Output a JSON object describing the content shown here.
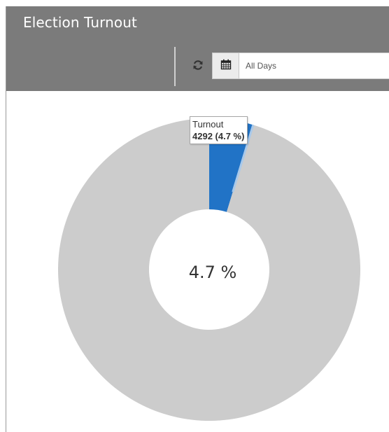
{
  "widget": {
    "title": "Election Turnout"
  },
  "toolbar": {
    "refresh_icon": "refresh-icon",
    "calendar_icon": "calendar-icon",
    "date_range_value": "All Days"
  },
  "chart": {
    "center_label": "4.7 %",
    "tooltip": {
      "series_name": "Turnout",
      "value_text": "4292 (4.7 %)"
    }
  },
  "chart_data": {
    "type": "pie",
    "donut": true,
    "slices": [
      {
        "name": "Turnout",
        "value": 4292,
        "percent": 4.7,
        "color": "#2173c6"
      },
      {
        "name": "",
        "percent": 95.3,
        "color": "#cccccc"
      }
    ],
    "center_text": "4.7 %",
    "tooltip_series": "Turnout",
    "tooltip_value": "4292 (4.7 %)"
  },
  "colors": {
    "header_bg": "#7b7b7b",
    "turnout": "#2173c6",
    "remainder": "#cccccc"
  }
}
